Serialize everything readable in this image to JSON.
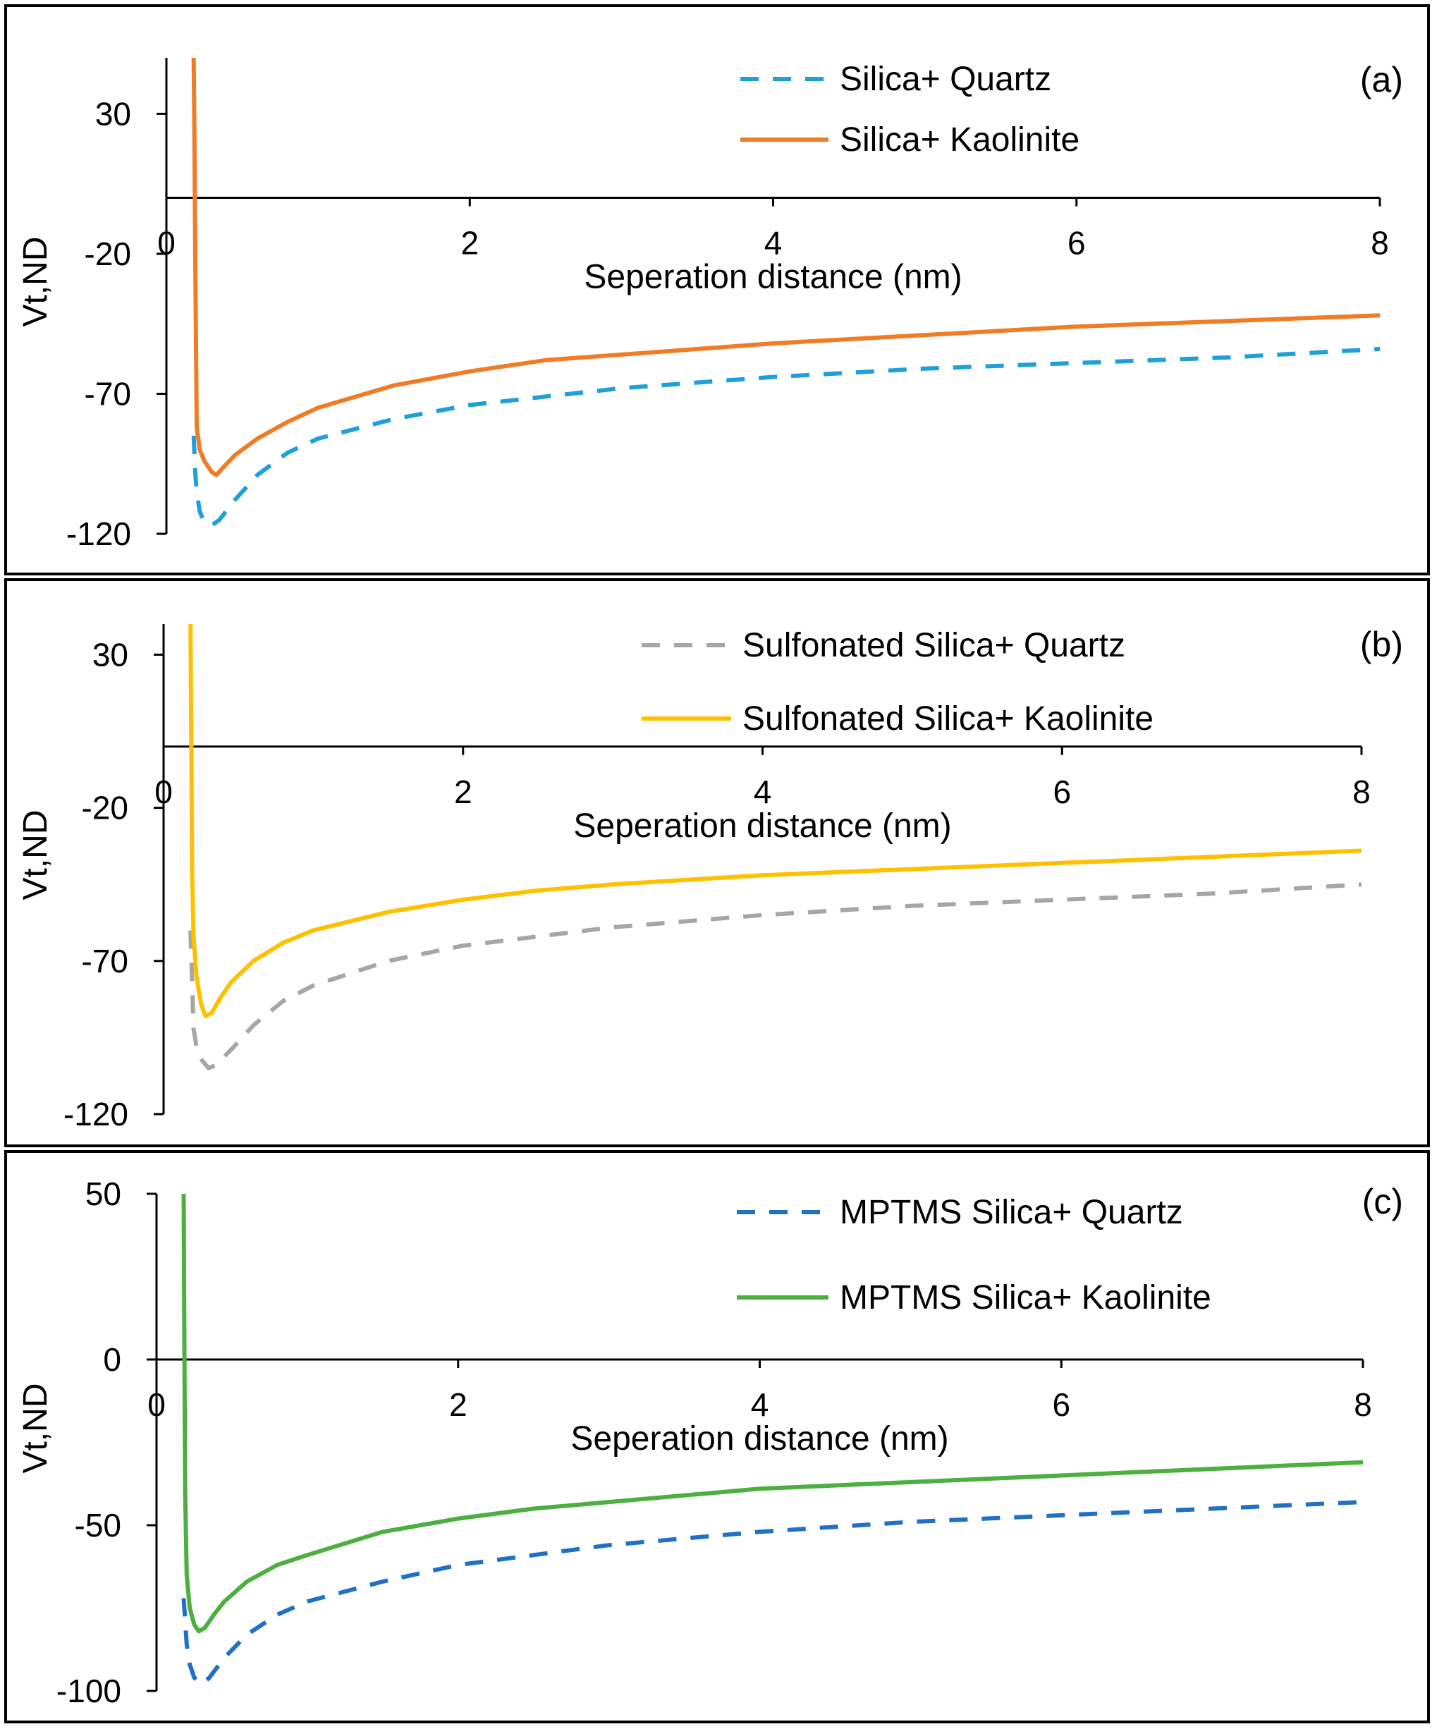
{
  "figure": {
    "background": "#ffffff",
    "frame_color": "#000000"
  },
  "chart_data": [
    {
      "type": "line",
      "panel_label": "(a)",
      "title": "",
      "xlabel": "Seperation distance (nm)",
      "ylabel": "Vt,ND",
      "xlim": [
        0,
        8
      ],
      "ylim": [
        -120,
        50
      ],
      "xticks": [
        0,
        2,
        4,
        6,
        8
      ],
      "xtick_labels": [
        "0",
        "2",
        "4",
        "6",
        "8"
      ],
      "yticks": [
        30,
        -20,
        -70,
        -120
      ],
      "ytick_labels": [
        "30",
        "-20",
        "-70",
        "-120"
      ],
      "grid": false,
      "legend_position": "top-right",
      "series": [
        {
          "name": "Silica+ Quartz",
          "color": "#1fa0d8",
          "dashed": true,
          "x": [
            0.18,
            0.19,
            0.2,
            0.22,
            0.25,
            0.3,
            0.35,
            0.45,
            0.6,
            0.8,
            1.0,
            1.5,
            2.0,
            2.5,
            3.0,
            4.0,
            5.0,
            6.0,
            7.0,
            8.0
          ],
          "y": [
            -85,
            -98,
            -105,
            -112,
            -116,
            -117,
            -115,
            -108,
            -99,
            -91,
            -86,
            -79,
            -74,
            -71,
            -68,
            -64,
            -61,
            -59,
            -57,
            -54
          ]
        },
        {
          "name": "Silica+ Kaolinite",
          "color": "#f07c26",
          "dashed": false,
          "x": [
            0.18,
            0.185,
            0.19,
            0.2,
            0.22,
            0.25,
            0.3,
            0.33,
            0.38,
            0.45,
            0.6,
            0.8,
            1.0,
            1.5,
            2.0,
            2.5,
            3.0,
            4.0,
            5.0,
            6.0,
            7.0,
            8.0
          ],
          "y": [
            50,
            20,
            -20,
            -82,
            -90,
            -94,
            -98,
            -99,
            -96,
            -92,
            -86,
            -80,
            -75,
            -67,
            -62,
            -58,
            -56,
            -52,
            -49,
            -46,
            -44,
            -42
          ]
        }
      ]
    },
    {
      "type": "line",
      "panel_label": "(b)",
      "title": "",
      "xlabel": "Seperation distance (nm)",
      "ylabel": "Vt,ND",
      "xlim": [
        0,
        8
      ],
      "ylim": [
        -120,
        40
      ],
      "xticks": [
        0,
        2,
        4,
        6,
        8
      ],
      "xtick_labels": [
        "0",
        "2",
        "4",
        "6",
        "8"
      ],
      "yticks": [
        30,
        -20,
        -70,
        -120
      ],
      "ytick_labels": [
        "30",
        "-20",
        "-70",
        "-120"
      ],
      "grid": false,
      "legend_position": "top-right",
      "series": [
        {
          "name": "Sulfonated Silica+ Quartz",
          "color": "#a6a6a6",
          "dashed": true,
          "x": [
            0.18,
            0.2,
            0.22,
            0.25,
            0.3,
            0.35,
            0.45,
            0.6,
            0.8,
            1.0,
            1.5,
            2.0,
            2.5,
            3.0,
            4.0,
            5.0,
            6.0,
            7.0,
            8.0
          ],
          "y": [
            -60,
            -92,
            -98,
            -102,
            -105,
            -104,
            -99,
            -91,
            -83,
            -78,
            -70,
            -65,
            -62,
            -59,
            -55,
            -52,
            -50,
            -48,
            -45
          ]
        },
        {
          "name": "Sulfonated Silica+ Kaolinite",
          "color": "#ffc000",
          "dashed": false,
          "x": [
            0.18,
            0.185,
            0.19,
            0.2,
            0.22,
            0.25,
            0.28,
            0.32,
            0.38,
            0.45,
            0.6,
            0.8,
            1.0,
            1.5,
            2.0,
            2.5,
            3.0,
            4.0,
            5.0,
            6.0,
            7.0,
            8.0
          ],
          "y": [
            40,
            0,
            -40,
            -62,
            -75,
            -84,
            -88,
            -87,
            -82,
            -77,
            -70,
            -64,
            -60,
            -54,
            -50,
            -47,
            -45,
            -42,
            -40,
            -38,
            -36,
            -34
          ]
        }
      ]
    },
    {
      "type": "line",
      "panel_label": "(c)",
      "title": "",
      "xlabel": "Seperation distance (nm)",
      "ylabel": "Vt,ND",
      "xlim": [
        0,
        8
      ],
      "ylim": [
        -100,
        50
      ],
      "xticks": [
        0,
        2,
        4,
        6,
        8
      ],
      "xtick_labels": [
        "0",
        "2",
        "4",
        "6",
        "8"
      ],
      "yticks": [
        50,
        0,
        -50,
        -100
      ],
      "ytick_labels": [
        "50",
        "0",
        "-50",
        "-100"
      ],
      "grid": false,
      "legend_position": "top-right",
      "series": [
        {
          "name": "MPTMS Silica+ Quartz",
          "color": "#2070c8",
          "dashed": true,
          "x": [
            0.18,
            0.2,
            0.22,
            0.25,
            0.3,
            0.35,
            0.45,
            0.6,
            0.8,
            1.0,
            1.5,
            2.0,
            2.5,
            3.0,
            4.0,
            5.0,
            6.0,
            7.0,
            8.0
          ],
          "y": [
            -72,
            -86,
            -92,
            -96,
            -98,
            -96,
            -90,
            -83,
            -77,
            -73,
            -67,
            -62,
            -59,
            -56,
            -52,
            -49,
            -47,
            -45,
            -43
          ]
        },
        {
          "name": "MPTMS Silica+ Kaolinite",
          "color": "#4caf3f",
          "dashed": false,
          "x": [
            0.18,
            0.185,
            0.19,
            0.2,
            0.22,
            0.25,
            0.28,
            0.32,
            0.38,
            0.45,
            0.6,
            0.8,
            1.0,
            1.5,
            2.0,
            2.5,
            3.0,
            4.0,
            5.0,
            6.0,
            7.0,
            8.0
          ],
          "y": [
            50,
            0,
            -40,
            -65,
            -75,
            -80,
            -82,
            -81,
            -77,
            -73,
            -67,
            -62,
            -59,
            -52,
            -48,
            -45,
            -43,
            -39,
            -37,
            -35,
            -33,
            -31
          ]
        }
      ]
    }
  ]
}
